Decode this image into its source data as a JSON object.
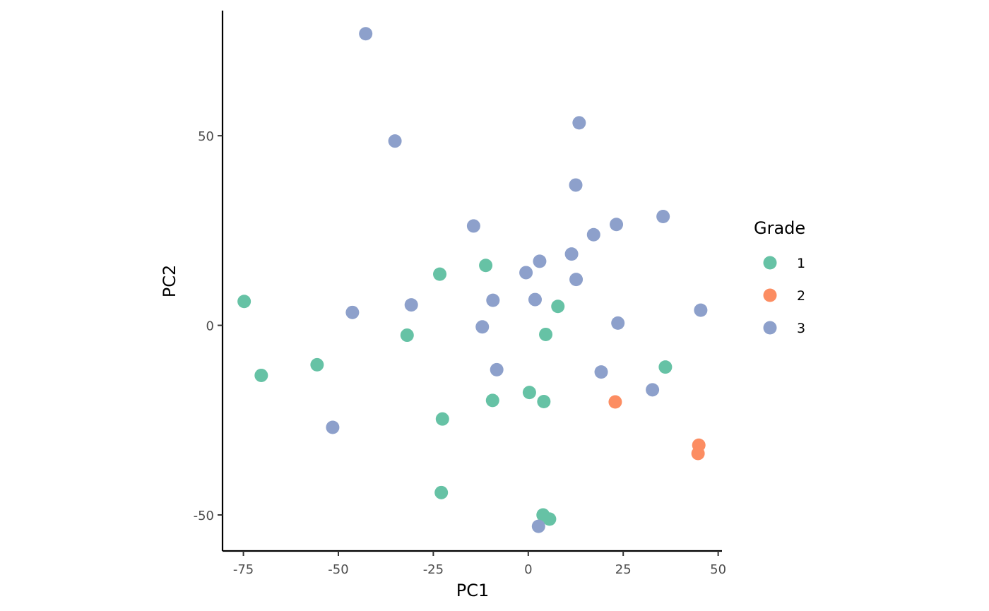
{
  "chart_data": {
    "type": "scatter",
    "xlabel": "PC1",
    "ylabel": "PC2",
    "xlim": [
      -80.5,
      51
    ],
    "ylim": [
      -59.5,
      83
    ],
    "x_ticks": [
      -75,
      -50,
      -25,
      0,
      25,
      50
    ],
    "x_tick_labels": [
      "-75",
      "-50",
      "-25",
      "0",
      "25",
      "50"
    ],
    "y_ticks": [
      -50,
      0,
      50
    ],
    "y_tick_labels": [
      "-50",
      "0",
      "50"
    ],
    "grid": false,
    "legend": {
      "title": "Grade",
      "position": "right",
      "entries": [
        {
          "label": "1",
          "color": "#66c2a5"
        },
        {
          "label": "2",
          "color": "#fc8d62"
        },
        {
          "label": "3",
          "color": "#8da0cb"
        }
      ]
    },
    "series": [
      {
        "name": "1",
        "color": "#66c2a5",
        "points": [
          [
            -74.8,
            6.3
          ],
          [
            -70.3,
            -13.2
          ],
          [
            -55.6,
            -10.4
          ],
          [
            -31.9,
            -2.6
          ],
          [
            -23.3,
            13.5
          ],
          [
            -22.6,
            -24.7
          ],
          [
            -22.9,
            -44.1
          ],
          [
            -11.2,
            15.8
          ],
          [
            -9.4,
            -19.8
          ],
          [
            0.3,
            -17.7
          ],
          [
            4.1,
            -20.1
          ],
          [
            4.6,
            -2.4
          ],
          [
            7.8,
            5.0
          ],
          [
            3.9,
            -50.0
          ],
          [
            5.6,
            -51.1
          ],
          [
            36.1,
            -11.0
          ]
        ]
      },
      {
        "name": "2",
        "color": "#fc8d62",
        "points": [
          [
            22.9,
            -20.2
          ],
          [
            44.9,
            -31.6
          ],
          [
            44.7,
            -33.8
          ]
        ]
      },
      {
        "name": "3",
        "color": "#8da0cb",
        "points": [
          [
            -42.8,
            76.9
          ],
          [
            -35.1,
            48.6
          ],
          [
            -46.3,
            3.4
          ],
          [
            -30.8,
            5.4
          ],
          [
            -51.5,
            -26.9
          ],
          [
            -14.4,
            26.2
          ],
          [
            -12.1,
            -0.4
          ],
          [
            -9.3,
            6.6
          ],
          [
            -8.3,
            -11.7
          ],
          [
            -0.6,
            13.9
          ],
          [
            1.8,
            6.8
          ],
          [
            3.0,
            16.9
          ],
          [
            11.4,
            18.8
          ],
          [
            12.6,
            12.1
          ],
          [
            12.5,
            37.0
          ],
          [
            13.4,
            53.4
          ],
          [
            17.2,
            23.9
          ],
          [
            23.2,
            26.6
          ],
          [
            23.6,
            0.6
          ],
          [
            19.2,
            -12.3
          ],
          [
            35.5,
            28.7
          ],
          [
            32.7,
            -17.0
          ],
          [
            45.4,
            4.0
          ],
          [
            2.7,
            -53.0
          ]
        ]
      }
    ]
  }
}
